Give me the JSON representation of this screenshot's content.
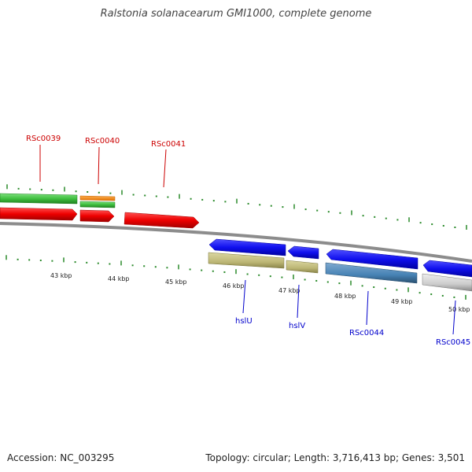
{
  "title": "Ralstonia solanacearum GMI1000, complete genome",
  "accession": "Accession: NC_003295",
  "summary": "Topology: circular; Length: 3,716,413 bp; Genes: 3,501",
  "colors": {
    "tick": "#2a8a2a",
    "backbone": "#8c8c8c",
    "forward_label": "#cc0000",
    "reverse_label": "#0000cc"
  },
  "kbp_labels": [
    "43 kbp",
    "44 kbp",
    "45 kbp",
    "46 kbp",
    "47 kbp",
    "48 kbp",
    "49 kbp",
    "50 kbp"
  ],
  "forward_genes": [
    {
      "label": "RSc0039",
      "color": "#ee0000"
    },
    {
      "label": "RSc0040",
      "color": "#ee0000"
    },
    {
      "label": "RSc0041",
      "color": "#ee0000"
    }
  ],
  "reverse_genes": [
    {
      "label": "hslU",
      "color": "#1010ee"
    },
    {
      "label": "hslV",
      "color": "#1010ee"
    },
    {
      "label": "RSc0044",
      "color": "#1010ee"
    },
    {
      "label": "RSc0045",
      "color": "#1010ee"
    }
  ]
}
